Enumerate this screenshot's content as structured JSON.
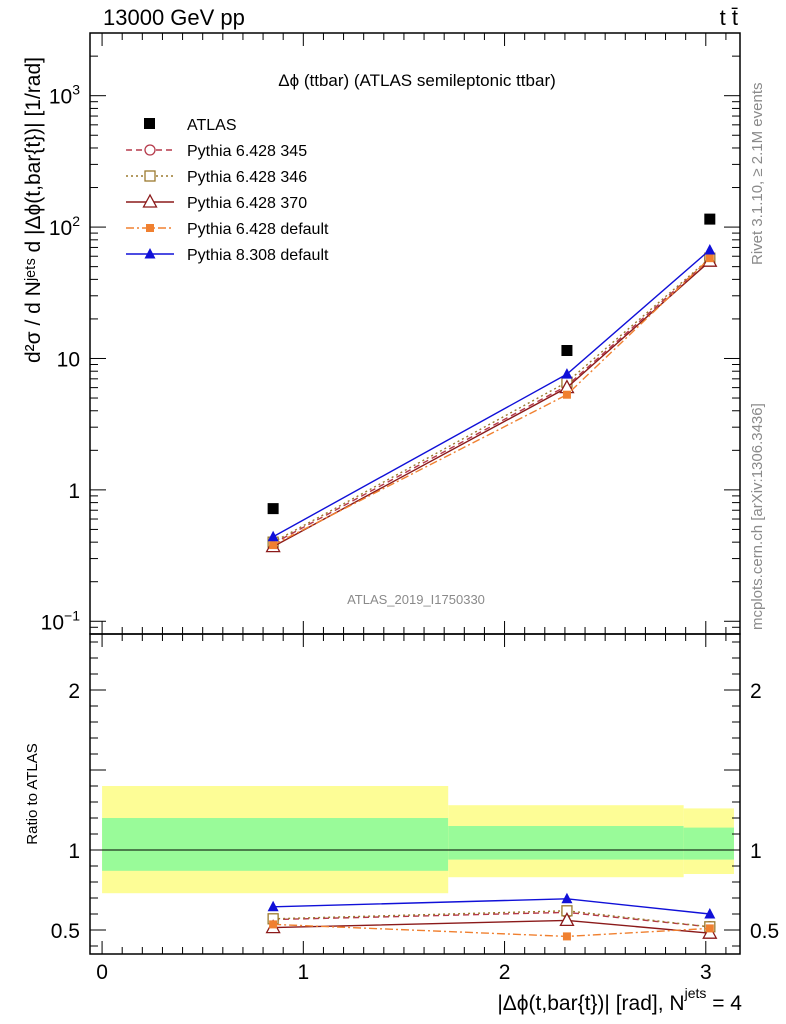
{
  "header": {
    "left": "13000 GeV pp",
    "right": "t t̄"
  },
  "side_labels": {
    "rivet": "Rivet 3.1.10, ≥ 2.1M events",
    "mcplots": "mcplots.cern.ch [arXiv:1306.3436]"
  },
  "chart_data": [
    {
      "type": "line",
      "title": "Δϕ (ttbar) (ATLAS semileptonic ttbar)",
      "ylabel": "d²σ / d Nʲᵉᵗˢ d |Δϕ(t,bar{t})| [1/rad]",
      "yscale": "log",
      "ylim": [
        0.08,
        3000
      ],
      "xlim": [
        -0.06,
        3.17
      ],
      "yticks": [
        {
          "v": 0.1,
          "base": "10",
          "exp": "−1"
        },
        {
          "v": 1,
          "base": "1",
          "exp": ""
        },
        {
          "v": 10,
          "base": "10",
          "exp": ""
        },
        {
          "v": 100,
          "base": "10",
          "exp": "2"
        },
        {
          "v": 1000,
          "base": "10",
          "exp": "3"
        }
      ],
      "watermark": "ATLAS_2019_I1750330",
      "legend_position": "top-left",
      "x": [
        0.85,
        2.31,
        3.02
      ],
      "data": {
        "name": "ATLAS",
        "values": [
          0.72,
          11.5,
          115
        ],
        "color": "#000000"
      },
      "series": [
        {
          "name": "Pythia 6.428 345",
          "values": [
            0.39,
            6.2,
            57
          ],
          "color": "#b5394a",
          "dash": "6,4",
          "marker": "circle-open"
        },
        {
          "name": "Pythia 6.428 346",
          "values": [
            0.4,
            6.6,
            58
          ],
          "color": "#9c7a2e",
          "dash": "2,3",
          "marker": "square-open"
        },
        {
          "name": "Pythia 6.428 370",
          "values": [
            0.37,
            6.0,
            55
          ],
          "color": "#8b1a1a",
          "dash": "",
          "marker": "triangle-open"
        },
        {
          "name": "Pythia 6.428 default",
          "values": [
            0.38,
            5.3,
            58
          ],
          "color": "#f08030",
          "dash": "8,3,2,3",
          "marker": "square-filled"
        },
        {
          "name": "Pythia 8.308 default",
          "values": [
            0.44,
            7.6,
            67
          ],
          "color": "#1010d8",
          "dash": "",
          "marker": "triangle-filled"
        }
      ]
    },
    {
      "type": "line",
      "ylabel": "Ratio to ATLAS",
      "xlabel": "|Δϕ(t,bar{t})| [rad], N",
      "xlabel_sup": "jets",
      "xlabel_tail": " = 4",
      "ylim": [
        0.35,
        2.35
      ],
      "xlim": [
        -0.06,
        3.17
      ],
      "xticks": [
        "0",
        "1",
        "2",
        "3"
      ],
      "yticks": [
        "0.5",
        "1",
        "2"
      ],
      "bins": [
        [
          0.0,
          1.72
        ],
        [
          1.72,
          2.89
        ],
        [
          2.89,
          3.14
        ]
      ],
      "band_yellow": [
        [
          0.73,
          1.4
        ],
        [
          0.83,
          1.28
        ],
        [
          0.85,
          1.26
        ]
      ],
      "band_green": [
        [
          0.87,
          1.2
        ],
        [
          0.94,
          1.15
        ],
        [
          0.94,
          1.14
        ]
      ],
      "x": [
        0.85,
        2.31,
        3.02
      ],
      "series": [
        {
          "name": "Pythia 6.428 345",
          "values": [
            0.565,
            0.61,
            0.52
          ],
          "color": "#b5394a",
          "dash": "6,4",
          "marker": "circle-open"
        },
        {
          "name": "Pythia 6.428 346",
          "values": [
            0.57,
            0.62,
            0.52
          ],
          "color": "#9c7a2e",
          "dash": "2,3",
          "marker": "square-open"
        },
        {
          "name": "Pythia 6.428 370",
          "values": [
            0.515,
            0.56,
            0.48
          ],
          "color": "#8b1a1a",
          "dash": "",
          "marker": "triangle-open"
        },
        {
          "name": "Pythia 6.428 default",
          "values": [
            0.535,
            0.46,
            0.51
          ],
          "color": "#f08030",
          "dash": "8,3,2,3",
          "marker": "square-filled"
        },
        {
          "name": "Pythia 8.308 default",
          "values": [
            0.645,
            0.695,
            0.6
          ],
          "color": "#1010d8",
          "dash": "",
          "marker": "triangle-filled"
        }
      ]
    }
  ]
}
